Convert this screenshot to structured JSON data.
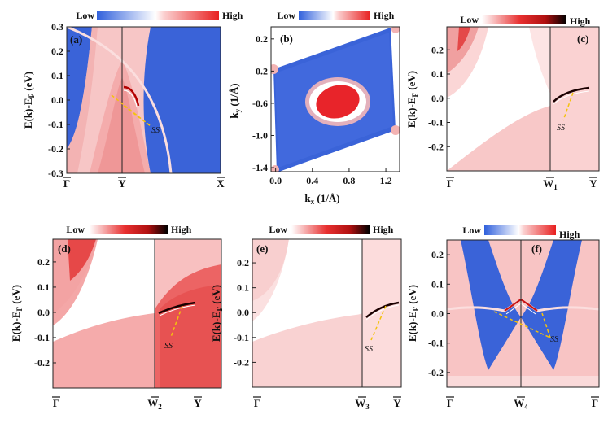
{
  "chart_data": [
    {
      "panel": "a",
      "type": "heatmap",
      "label": "(a)",
      "colormap": "blue-white-red",
      "colorbar": {
        "low": "Low",
        "high": "High"
      },
      "ylabel": "E(k)-E_F (eV)",
      "ylim": [
        -0.3,
        0.3
      ],
      "yticks": [
        0.3,
        0.2,
        0.1,
        0.0,
        -0.1,
        -0.2,
        -0.3
      ],
      "ytick_labels": [
        "0.3",
        "0.2",
        "0.1",
        "0.0",
        "-0.1",
        "-0.2",
        "-0.3"
      ],
      "kpath": [
        {
          "name": "Γ",
          "bar": true,
          "sub": ""
        },
        {
          "name": "Y",
          "bar": true,
          "sub": ""
        },
        {
          "name": "X",
          "bar": true,
          "sub": ""
        }
      ],
      "annotation": "SS"
    },
    {
      "panel": "b",
      "type": "heatmap",
      "label": "(b)",
      "colormap": "blue-white-red",
      "colorbar": {
        "low": "Low",
        "high": "High"
      },
      "xlabel": "k_x (1/Å)",
      "ylabel": "k_y (1/Å)",
      "xlim": [
        -0.05,
        1.35
      ],
      "ylim": [
        -1.45,
        0.35
      ],
      "xticks": [
        0.0,
        0.4,
        0.8,
        1.2
      ],
      "xtick_labels": [
        "0.0",
        "0.4",
        "0.8",
        "1.2"
      ],
      "yticks": [
        0.2,
        -0.2,
        -0.6,
        -1.0,
        -1.4
      ],
      "ytick_labels": [
        "0.2",
        "-0.2",
        "-0.6",
        "-1.0",
        "-1.4"
      ]
    },
    {
      "panel": "c",
      "type": "heatmap",
      "label": "(c)",
      "colormap": "white-red-black",
      "colorbar": {
        "low": "Low",
        "high": "High"
      },
      "ylabel": "E(k)-E_F (eV)",
      "ylim": [
        -0.3,
        0.3
      ],
      "yticks": [
        0.2,
        0.1,
        0.0,
        -0.1,
        -0.2
      ],
      "ytick_labels": [
        "0.2",
        "0.1",
        "0.0",
        "-0.1",
        "-0.2"
      ],
      "kpath": [
        {
          "name": "Γ",
          "bar": true,
          "sub": ""
        },
        {
          "name": "W",
          "bar": true,
          "sub": "1"
        },
        {
          "name": "Y",
          "bar": true,
          "sub": ""
        }
      ],
      "annotation": "SS"
    },
    {
      "panel": "d",
      "type": "heatmap",
      "label": "(d)",
      "colormap": "white-red-black",
      "colorbar": {
        "low": "Low",
        "high": "High"
      },
      "ylabel": "E(k)-E_F (eV)",
      "ylim": [
        -0.3,
        0.3
      ],
      "yticks": [
        0.2,
        0.1,
        0.0,
        -0.1,
        -0.2
      ],
      "ytick_labels": [
        "0.2",
        "0.1",
        "0.0",
        "-0.1",
        "-0.2"
      ],
      "kpath": [
        {
          "name": "Γ",
          "bar": true,
          "sub": ""
        },
        {
          "name": "W",
          "bar": true,
          "sub": "2"
        },
        {
          "name": "Y",
          "bar": true,
          "sub": ""
        }
      ],
      "annotation": "SS"
    },
    {
      "panel": "e",
      "type": "heatmap",
      "label": "(e)",
      "colormap": "white-red-black",
      "colorbar": {
        "low": "Low",
        "high": "High"
      },
      "ylabel": "E(k)-E_F (eV)",
      "ylim": [
        -0.3,
        0.3
      ],
      "yticks": [
        0.2,
        0.1,
        0.0,
        -0.1,
        -0.2
      ],
      "ytick_labels": [
        "0.2",
        "0.1",
        "0.0",
        "-0.1",
        "-0.2"
      ],
      "kpath": [
        {
          "name": "Γ",
          "bar": true,
          "sub": ""
        },
        {
          "name": "W",
          "bar": true,
          "sub": "3"
        },
        {
          "name": "Y",
          "bar": true,
          "sub": ""
        }
      ],
      "annotation": "SS"
    },
    {
      "panel": "f",
      "type": "heatmap",
      "label": "(f)",
      "colormap": "blue-white-red",
      "colorbar": {
        "low": "Low",
        "high": "High"
      },
      "ylabel": "E(k)-E_F (eV)",
      "ylim": [
        -0.25,
        0.25
      ],
      "yticks": [
        0.2,
        0.1,
        0.0,
        -0.1,
        -0.2
      ],
      "ytick_labels": [
        "0.2",
        "0.1",
        "0.0",
        "-0.1",
        "-0.2"
      ],
      "kpath": [
        {
          "name": "Γ",
          "bar": true,
          "sub": ""
        },
        {
          "name": "W",
          "bar": true,
          "sub": "4"
        },
        {
          "name": "Γ",
          "bar": true,
          "sub": ""
        }
      ],
      "annotation": "SS"
    }
  ],
  "colors": {
    "blue": "#3a63d8",
    "pink": "#f6c3c3",
    "lightpink": "#fbe2e2",
    "red": "#e8363a",
    "dark": "#3a0606",
    "ss_line": "#f4c20d"
  }
}
